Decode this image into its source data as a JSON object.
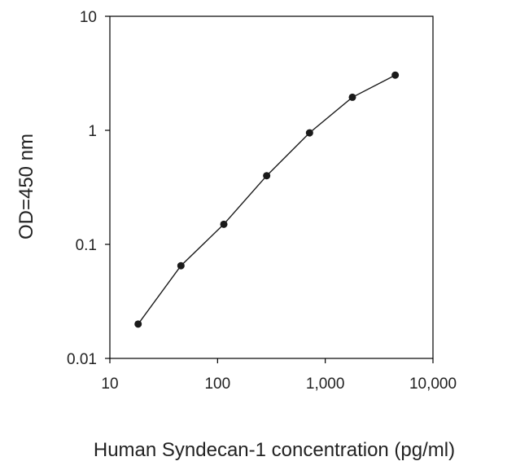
{
  "chart_data": {
    "type": "line",
    "title": "",
    "xlabel": "Human Syndecan-1 concentration (pg/ml)",
    "ylabel": "OD=450 nm",
    "xscale": "log",
    "yscale": "log",
    "xlim": [
      10,
      10000
    ],
    "ylim": [
      0.01,
      10
    ],
    "xticks": [
      10,
      100,
      1000,
      10000
    ],
    "xtick_labels": [
      "10",
      "100",
      "1,000",
      "10,000"
    ],
    "yticks": [
      0.01,
      0.1,
      1,
      10
    ],
    "ytick_labels": [
      "0.01",
      "0.1",
      "1",
      "10"
    ],
    "grid": false,
    "legend": "none",
    "colors": {
      "line": "#1a1a1a",
      "marker": "#1a1a1a",
      "axis": "#000000"
    },
    "series": [
      {
        "x": [
          18.3,
          45.7,
          114.3,
          285.7,
          714.3,
          1785.7,
          4464.3
        ],
        "y": [
          0.02,
          0.065,
          0.15,
          0.4,
          0.95,
          1.95,
          3.05
        ]
      }
    ]
  }
}
